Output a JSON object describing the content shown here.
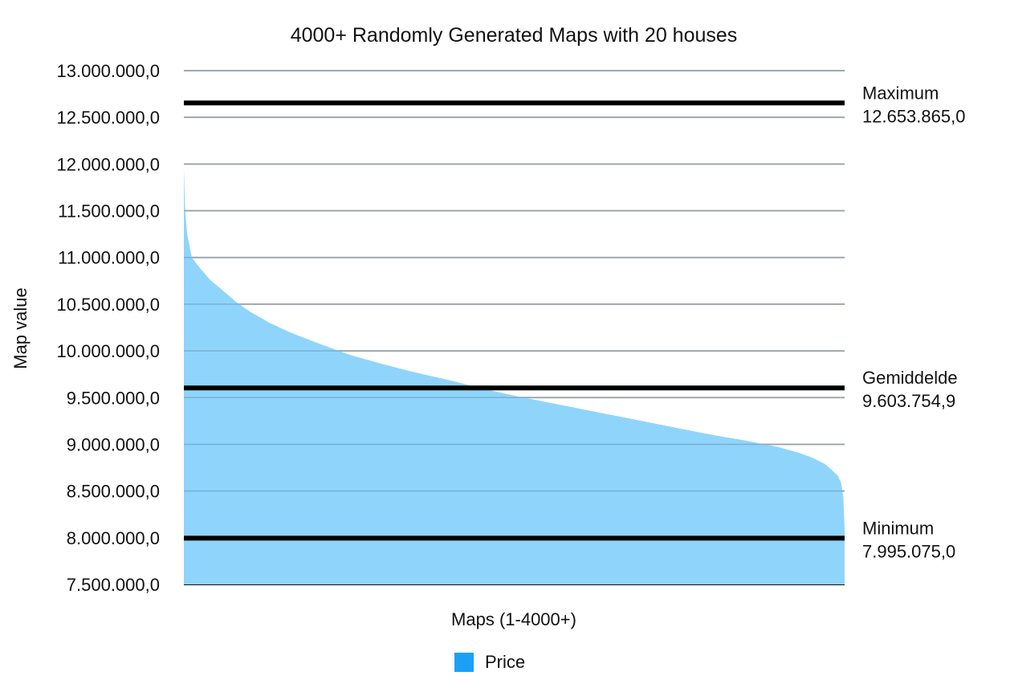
{
  "chart_data": {
    "type": "area",
    "title": "4000+ Randomly Generated Maps with 20 houses",
    "xlabel": "Maps (1-4000+)",
    "ylabel": "Map value",
    "ylim": [
      7500000,
      13000000
    ],
    "y_ticks": [
      "13.000.000,0",
      "12.500.000,0",
      "12.000.000,0",
      "11.500.000,0",
      "11.000.000,0",
      "10.500.000,0",
      "10.000.000,0",
      "9.500.000,0",
      "9.000.000,0",
      "8.500.000,0",
      "8.000.000,0",
      "7.500.000,0"
    ],
    "y_tick_values": [
      13000000,
      12500000,
      12000000,
      11500000,
      11000000,
      10500000,
      10000000,
      9500000,
      9000000,
      8500000,
      8000000,
      7500000
    ],
    "grid": true,
    "legend_position": "bottom",
    "series": [
      {
        "name": "Price",
        "color": "#8fd4fb",
        "legend_color": "#1aa1f7",
        "x": [
          0,
          0.2,
          0.5,
          1.2,
          2.5,
          4,
          6,
          8,
          10,
          13,
          16,
          20,
          25,
          30,
          35,
          40,
          45,
          50,
          55,
          60,
          65,
          70,
          75,
          80,
          85,
          90,
          93,
          95,
          97,
          98,
          99,
          99.5,
          99.8,
          100
        ],
        "values": [
          11950000,
          11500000,
          11250000,
          11000000,
          10880000,
          10760000,
          10640000,
          10520000,
          10420000,
          10300000,
          10200000,
          10090000,
          9960000,
          9860000,
          9770000,
          9690000,
          9600000,
          9520000,
          9450000,
          9380000,
          9310000,
          9240000,
          9170000,
          9100000,
          9040000,
          8970000,
          8910000,
          8860000,
          8790000,
          8730000,
          8660000,
          8580000,
          8430000,
          8100000
        ]
      }
    ],
    "annotations": [
      {
        "label": "Maximum",
        "value_text": "12.653.865,0",
        "value": 12653865
      },
      {
        "label": "Gemiddelde",
        "value_text": "9.603.754,9",
        "value": 9603754.9
      },
      {
        "label": "Minimum",
        "value_text": "7.995.075,0",
        "value": 7995075
      }
    ]
  },
  "legend": {
    "label": "Price"
  }
}
